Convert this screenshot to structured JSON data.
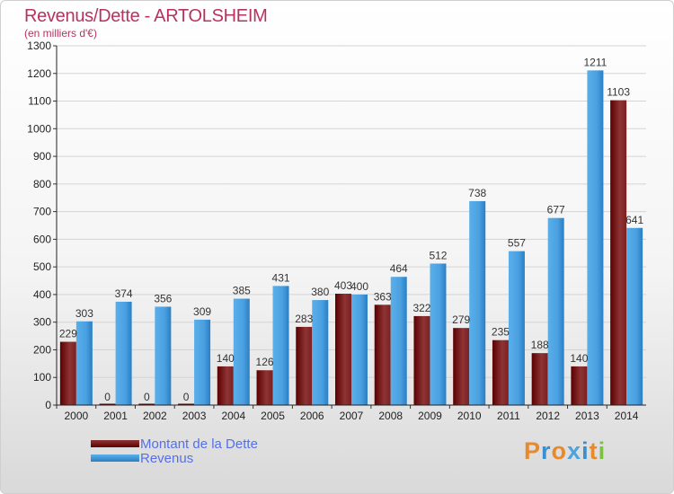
{
  "title": "Revenus/Dette - ARTOLSHEIM",
  "subtitle": "(en milliers d'€)",
  "logo": {
    "letters": [
      "P",
      "r",
      "o",
      "x",
      "i",
      "t",
      "i"
    ],
    "colors": [
      "#e8892a",
      "#3a8fd0",
      "#e8892a",
      "#4ba3e0",
      "#3a8fd0",
      "#e8892a",
      "#7cc242"
    ]
  },
  "colors": {
    "dette_dark": "#5a0000",
    "dette_light": "#8e3434",
    "revenus_dark": "#2a7fc4",
    "revenus_light": "#5aafea",
    "title": "#b6335e",
    "legend_text": "#5570e6"
  },
  "chart_data": {
    "type": "bar",
    "title": "Revenus/Dette - ARTOLSHEIM",
    "ylabel": "(en milliers d'€)",
    "ylim": [
      0,
      1300
    ],
    "yticks": [
      0,
      100,
      200,
      300,
      400,
      500,
      600,
      700,
      800,
      900,
      1000,
      1100,
      1200,
      1300
    ],
    "categories": [
      "2000",
      "2001",
      "2002",
      "2003",
      "2004",
      "2005",
      "2006",
      "2007",
      "2008",
      "2009",
      "2010",
      "2011",
      "2012",
      "2013",
      "2014"
    ],
    "series": [
      {
        "name": "Montant de la Dette",
        "values": [
          229,
          0,
          0,
          0,
          140,
          126,
          283,
          403,
          363,
          322,
          279,
          235,
          188,
          140,
          1103
        ]
      },
      {
        "name": "Revenus",
        "values": [
          303,
          374,
          356,
          309,
          385,
          431,
          380,
          400,
          464,
          512,
          738,
          557,
          677,
          1211,
          641
        ]
      }
    ],
    "legend": [
      "Montant de la Dette",
      "Revenus"
    ]
  }
}
